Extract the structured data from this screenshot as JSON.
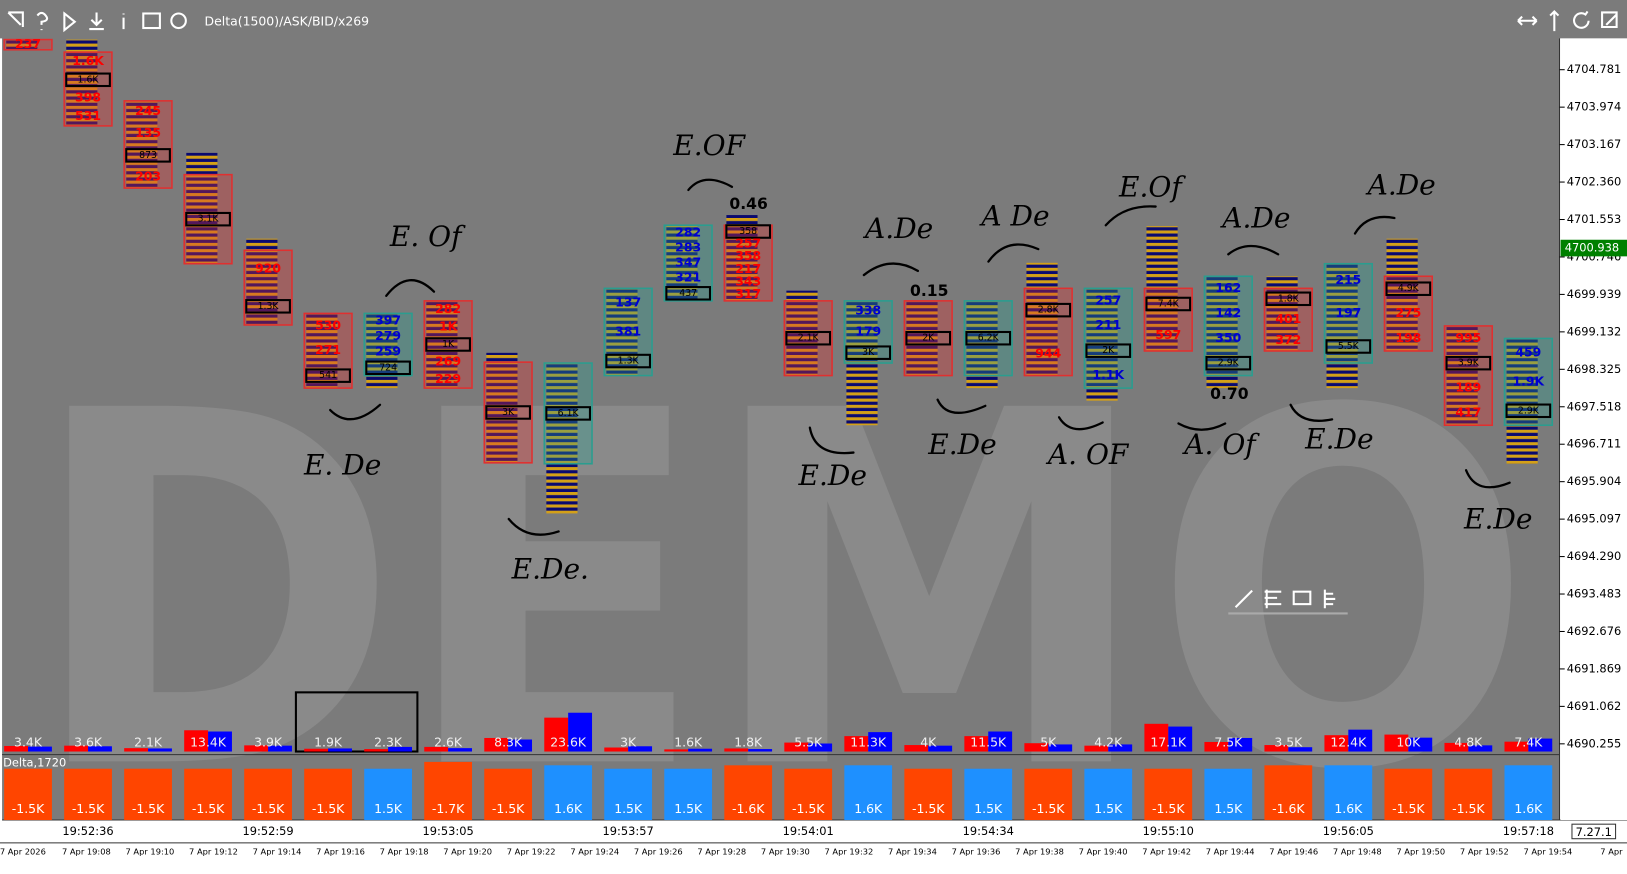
{
  "toolbar": {
    "study": "Delta(1500)/ASK/BID/x269"
  },
  "watermark": "DEMO",
  "version": "7.27.1",
  "date_labels": [
    "7 Apr 2026",
    "7 Apr 19:08",
    "7 Apr 19:10",
    "7 Apr 19:12",
    "7 Apr 19:14",
    "7 Apr 19:16",
    "7 Apr 19:18",
    "7 Apr 19:20",
    "7 Apr 19:22",
    "7 Apr 19:24",
    "7 Apr 19:26",
    "7 Apr 19:28",
    "7 Apr 19:30",
    "7 Apr 19:32",
    "7 Apr 19:34",
    "7 Apr 19:36",
    "7 Apr 19:38",
    "7 Apr 19:40",
    "7 Apr 19:42",
    "7 Apr 19:44",
    "7 Apr 19:46",
    "7 Apr 19:48",
    "7 Apr 19:50",
    "7 Apr 19:52",
    "7 Apr 19:54",
    "7 Apr"
  ],
  "chart_data": [
    {
      "type": "footprint",
      "categories": [
        null,
        "19:52:36",
        null,
        null,
        "19:52:59",
        null,
        null,
        "19:53:05",
        null,
        null,
        "19:53:57",
        null,
        null,
        "19:54:01",
        null,
        null,
        "19:54:34",
        null,
        null,
        "19:55:10",
        null,
        null,
        "19:56:05",
        null,
        null,
        "19:57:18"
      ],
      "ylim": [
        4690.0,
        4705.5
      ],
      "yticks": [
        4704.781,
        4703.974,
        4703.167,
        {
          "value": 4702.36,
          "label": "4702.360"
        },
        4701.553,
        4700.746,
        4699.939,
        4699.132,
        4698.325,
        4697.518,
        4696.711,
        4695.904,
        4695.097,
        {
          "value": 4694.29,
          "label": "4694.290"
        },
        4693.483,
        4692.676,
        4691.869,
        4691.062,
        4690.255
      ],
      "current_price": 4700.938,
      "colors": {
        "down": "#e03030",
        "up": "#2a9d8f",
        "down_text": "#ff0000",
        "up_text": "#0000d0",
        "current": "#008000"
      },
      "candles": [
        {
          "open": 4705.43,
          "close": 4705.21,
          "high": 4705.43,
          "low": 4705.21,
          "labels": [
            "237"
          ],
          "poc": null
        },
        {
          "open": 4705.16,
          "close": 4703.57,
          "high": 4705.43,
          "low": 4703.57,
          "labels": [
            "1.6K",
            "1.6K",
            "398",
            "531"
          ],
          "poc": 1
        },
        {
          "open": 4704.11,
          "close": 4702.23,
          "high": 4704.11,
          "low": 4702.23,
          "labels": [
            "245",
            "135",
            "873",
            "203"
          ],
          "poc": 2
        },
        {
          "open": 4702.52,
          "close": 4700.6,
          "high": 4702.99,
          "low": 4700.6,
          "labels": [
            "3.1K"
          ],
          "poc": 0
        },
        {
          "open": 4700.89,
          "close": 4699.28,
          "high": 4701.14,
          "low": 4699.28,
          "labels": [
            "920",
            "1.3K"
          ],
          "poc": 1
        },
        {
          "open": 4699.53,
          "close": 4697.92,
          "high": 4699.53,
          "low": 4697.92,
          "labels": [
            "530",
            "271",
            "541"
          ],
          "poc": 2
        },
        {
          "open": 4698.19,
          "close": 4699.53,
          "high": 4699.53,
          "low": 4697.92,
          "labels": [
            "397",
            "279",
            "259",
            "724"
          ],
          "poc": 3
        },
        {
          "open": 4699.8,
          "close": 4697.92,
          "high": 4699.8,
          "low": 4697.92,
          "labels": [
            "282",
            "1K",
            "1K",
            "269",
            "229"
          ],
          "poc": 2
        },
        {
          "open": 4698.48,
          "close": 4696.31,
          "high": 4698.68,
          "low": 4696.31,
          "labels": [
            "3K"
          ],
          "poc": 0
        },
        {
          "open": 4696.29,
          "close": 4698.46,
          "high": 4698.46,
          "low": 4695.22,
          "labels": [
            "6.1K"
          ],
          "poc": 0
        },
        {
          "open": 4698.19,
          "close": 4700.07,
          "high": 4700.07,
          "low": 4698.19,
          "labels": [
            "137",
            "381",
            "1.3K"
          ],
          "poc": 2
        },
        {
          "open": 4699.8,
          "close": 4701.43,
          "high": 4701.43,
          "low": 4699.8,
          "labels": [
            "282",
            "283",
            "347",
            "321",
            "437"
          ],
          "poc": 4
        },
        {
          "open": 4701.43,
          "close": 4699.8,
          "high": 4701.65,
          "low": 4699.8,
          "labels": [
            "358",
            "257",
            "358",
            "217",
            "343",
            "317"
          ],
          "poc": 0
        },
        {
          "open": 4699.8,
          "close": 4698.19,
          "high": 4700.02,
          "low": 4698.19,
          "labels": [
            "2.1K"
          ],
          "poc": 0
        },
        {
          "open": 4698.46,
          "close": 4699.8,
          "high": 4699.8,
          "low": 4697.12,
          "labels": [
            "338",
            "179",
            "3K"
          ],
          "poc": 2
        },
        {
          "open": 4699.8,
          "close": 4698.19,
          "high": 4699.8,
          "low": 4698.19,
          "labels": [
            "2K"
          ],
          "poc": 0
        },
        {
          "open": 4698.19,
          "close": 4699.8,
          "high": 4699.8,
          "low": 4697.92,
          "labels": [
            "6.2K"
          ],
          "poc": 0
        },
        {
          "open": 4700.07,
          "close": 4698.19,
          "high": 4700.62,
          "low": 4698.19,
          "labels": [
            "2.8K",
            "944"
          ],
          "poc": 0
        },
        {
          "open": 4697.92,
          "close": 4700.07,
          "high": 4700.07,
          "low": 4697.65,
          "labels": [
            "257",
            "211",
            "2K",
            "1.1K"
          ],
          "poc": 2
        },
        {
          "open": 4700.07,
          "close": 4698.72,
          "high": 4701.41,
          "low": 4698.72,
          "labels": [
            "7.4K",
            "597"
          ],
          "poc": 0
        },
        {
          "open": 4698.19,
          "close": 4700.33,
          "high": 4700.33,
          "low": 4697.92,
          "labels": [
            "162",
            "142",
            "350",
            "2.9K"
          ],
          "poc": 3
        },
        {
          "open": 4700.07,
          "close": 4698.72,
          "high": 4700.33,
          "low": 4698.72,
          "labels": [
            "1.8K",
            "401",
            "372"
          ],
          "poc": 0
        },
        {
          "open": 4698.46,
          "close": 4700.6,
          "high": 4700.6,
          "low": 4697.92,
          "labels": [
            "215",
            "197",
            "5.5K"
          ],
          "poc": 2
        },
        {
          "open": 4700.33,
          "close": 4698.72,
          "high": 4701.14,
          "low": 4698.72,
          "labels": [
            "4.9K",
            "275",
            "198"
          ],
          "poc": 0
        },
        {
          "open": 4699.26,
          "close": 4697.12,
          "high": 4699.26,
          "low": 4697.12,
          "labels": [
            "995",
            "3.9K",
            "189",
            "417"
          ],
          "poc": 1
        },
        {
          "open": 4697.12,
          "close": 4698.99,
          "high": 4698.99,
          "low": 4696.29,
          "labels": [
            "459",
            "1.9K",
            "2.9K"
          ],
          "poc": 2
        }
      ],
      "annotations": [
        "0.46",
        "0.15",
        "0.70",
        "E. Of",
        "E. De",
        "E.De.",
        "E.OF",
        "A.De",
        "E.De",
        "A De",
        "E.De",
        "E.Of",
        "A. OF",
        "A.De",
        "A. Of",
        "A.De",
        "E.De",
        "E.De"
      ]
    },
    {
      "type": "bar",
      "series": [
        {
          "color": "#ff0000",
          "values": [
            1800,
            1900,
            1100,
            6900,
            2000,
            900,
            800,
            1500,
            4400,
            11000,
            1300,
            700,
            1000,
            2900,
            5000,
            2100,
            5000,
            2700,
            1900,
            9000,
            3100,
            2100,
            5300,
            5500,
            2800,
            3200
          ]
        },
        {
          "color": "#0000ff",
          "values": [
            1600,
            1700,
            1000,
            6500,
            1900,
            1000,
            1500,
            1100,
            3900,
            12600,
            1700,
            900,
            800,
            2600,
            6300,
            1900,
            6500,
            2300,
            2300,
            8100,
            4400,
            1400,
            7100,
            4500,
            2000,
            4200
          ]
        }
      ],
      "values": [
        3400,
        3600,
        2100,
        13400,
        3900,
        1900,
        2300,
        2600,
        8300,
        23600,
        3000,
        1600,
        1800,
        5500,
        11300,
        4000,
        11500,
        5000,
        4200,
        17100,
        7500,
        3500,
        12400,
        10000,
        4800,
        7400
      ],
      "value_labels": [
        "3.4K",
        "3.6K",
        "2.1K",
        "13.4K",
        "3.9K",
        "1.9K",
        "2.3K",
        "2.6K",
        "8.3K",
        "23.6K",
        "3K",
        "1.6K",
        "1.8K",
        "5.5K",
        "11.3K",
        "4K",
        "11.5K",
        "5K",
        "4.2K",
        "17.1K",
        "7.5K",
        "3.5K",
        "12.4K",
        "10K",
        "4.8K",
        "7.4K"
      ]
    },
    {
      "type": "bar",
      "title": "Delta,1720",
      "colors": {
        "negative": "#ff4500",
        "positive": "#1e90ff"
      },
      "values": [
        -1500,
        -1500,
        -1500,
        -1500,
        -1500,
        -1500,
        1500,
        -1700,
        -1500,
        1600,
        1500,
        1500,
        -1600,
        -1500,
        1600,
        -1500,
        1500,
        -1500,
        1500,
        -1500,
        1500,
        -1600,
        1600,
        -1500,
        -1500,
        1600
      ],
      "value_labels": [
        "-1.5K",
        "-1.5K",
        "-1.5K",
        "-1.5K",
        "-1.5K",
        "-1.5K",
        "1.5K",
        "-1.7K",
        "-1.5K",
        "1.6K",
        "1.5K",
        "1.5K",
        "-1.6K",
        "-1.5K",
        "1.6K",
        "-1.5K",
        "1.5K",
        "-1.5K",
        "1.5K",
        "-1.5K",
        "1.5K",
        "-1.6K",
        "1.6K",
        "-1.5K",
        "-1.5K",
        "1.6K"
      ]
    }
  ]
}
